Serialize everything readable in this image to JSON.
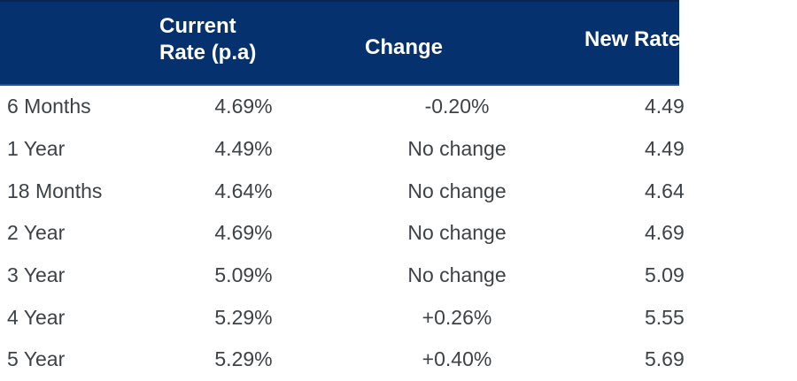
{
  "theme": {
    "header_bg": "#06316f",
    "header_top_line": "#0b2450",
    "header_bottom_line": "#2e4f8e",
    "header_text": "#ffffff",
    "body_bg": "#ffffff",
    "body_text": "#3d4247"
  },
  "table": {
    "columns": [
      {
        "label": ""
      },
      {
        "label": "Current Rate (p.a)"
      },
      {
        "label": "Change"
      },
      {
        "label": "New Rate"
      }
    ],
    "rows": [
      {
        "term": "6 Months",
        "current_rate": "4.69%",
        "change": "-0.20%",
        "new_rate": "4.49"
      },
      {
        "term": "1 Year",
        "current_rate": "4.49%",
        "change": "No change",
        "new_rate": "4.49"
      },
      {
        "term": "18 Months",
        "current_rate": "4.64%",
        "change": "No change",
        "new_rate": "4.64"
      },
      {
        "term": "2 Year",
        "current_rate": "4.69%",
        "change": "No change",
        "new_rate": "4.69"
      },
      {
        "term": "3 Year",
        "current_rate": "5.09%",
        "change": "No change",
        "new_rate": "5.09"
      },
      {
        "term": "4 Year",
        "current_rate": "5.29%",
        "change": "+0.26%",
        "new_rate": "5.55"
      },
      {
        "term": "5 Year",
        "current_rate": "5.29%",
        "change": "+0.40%",
        "new_rate": "5.69"
      }
    ]
  },
  "chart_data": {
    "type": "table",
    "title": "",
    "columns": [
      "",
      "Current Rate (p.a)",
      "Change",
      "New Rate"
    ],
    "rows": [
      [
        "6 Months",
        "4.69%",
        "-0.20%",
        "4.49"
      ],
      [
        "1 Year",
        "4.49%",
        "No change",
        "4.49"
      ],
      [
        "18 Months",
        "4.64%",
        "No change",
        "4.64"
      ],
      [
        "2 Year",
        "4.69%",
        "No change",
        "4.69"
      ],
      [
        "3 Year",
        "5.09%",
        "No change",
        "5.09"
      ],
      [
        "4 Year",
        "5.29%",
        "+0.26%",
        "5.55"
      ],
      [
        "5 Year",
        "5.29%",
        "+0.40%",
        "5.69"
      ]
    ],
    "layout_hints": {
      "header_style": "navy background, bold white text",
      "right_edge_clipped": true
    }
  }
}
